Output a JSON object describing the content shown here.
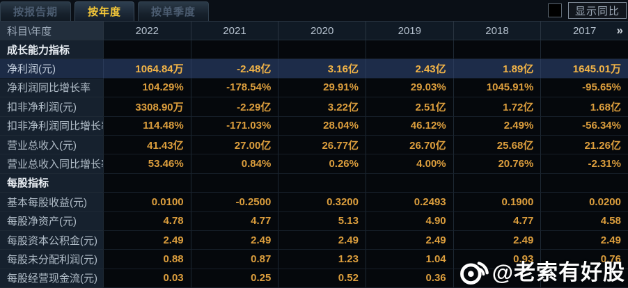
{
  "tabs": [
    {
      "label": "按报告期",
      "active": false
    },
    {
      "label": "按年度",
      "active": true
    },
    {
      "label": "按单季度",
      "active": false
    }
  ],
  "controls": {
    "show_yoy_label": "显示同比",
    "checkbox_checked": false
  },
  "table": {
    "corner_label": "科目\\年度",
    "years": [
      "2022",
      "2021",
      "2020",
      "2019",
      "2018",
      "2017"
    ],
    "more_label": "»",
    "rows": [
      {
        "type": "section",
        "label": "成长能力指标",
        "values": [
          "",
          "",
          "",
          "",
          "",
          ""
        ]
      },
      {
        "type": "highlight",
        "label": "净利润(元)",
        "values": [
          "1064.84万",
          "-2.48亿",
          "3.16亿",
          "2.43亿",
          "1.89亿",
          "1645.01万"
        ]
      },
      {
        "type": "data",
        "label": "净利润同比增长率",
        "values": [
          "104.29%",
          "-178.54%",
          "29.91%",
          "29.03%",
          "1045.91%",
          "-95.65%"
        ]
      },
      {
        "type": "data",
        "label": "扣非净利润(元)",
        "values": [
          "3308.90万",
          "-2.29亿",
          "3.22亿",
          "2.51亿",
          "1.72亿",
          "1.68亿"
        ]
      },
      {
        "type": "data",
        "label": "扣非净利润同比增长率",
        "values": [
          "114.48%",
          "-171.03%",
          "28.04%",
          "46.12%",
          "2.49%",
          "-56.34%"
        ]
      },
      {
        "type": "data",
        "label": "营业总收入(元)",
        "values": [
          "41.43亿",
          "27.00亿",
          "26.77亿",
          "26.70亿",
          "25.68亿",
          "21.26亿"
        ]
      },
      {
        "type": "data",
        "label": "营业总收入同比增长率",
        "values": [
          "53.46%",
          "0.84%",
          "0.26%",
          "4.00%",
          "20.76%",
          "-2.31%"
        ]
      },
      {
        "type": "section",
        "label": "每股指标",
        "values": [
          "",
          "",
          "",
          "",
          "",
          ""
        ]
      },
      {
        "type": "data",
        "label": "基本每股收益(元)",
        "values": [
          "0.0100",
          "-0.2500",
          "0.3200",
          "0.2493",
          "0.1900",
          "0.0200"
        ]
      },
      {
        "type": "data",
        "label": "每股净资产(元)",
        "values": [
          "4.78",
          "4.77",
          "5.13",
          "4.90",
          "4.77",
          "4.58"
        ]
      },
      {
        "type": "data",
        "label": "每股资本公积金(元)",
        "values": [
          "2.49",
          "2.49",
          "2.49",
          "2.49",
          "2.49",
          "2.49"
        ]
      },
      {
        "type": "data",
        "label": "每股未分配利润(元)",
        "values": [
          "0.88",
          "0.87",
          "1.23",
          "1.04",
          "0.93",
          "0.76"
        ]
      },
      {
        "type": "data",
        "label": "每股经营现金流(元)",
        "values": [
          "0.03",
          "0.25",
          "0.52",
          "0.36",
          "",
          ""
        ]
      }
    ]
  },
  "watermark": {
    "icon": "weibo-icon",
    "text": "@老索有好股"
  },
  "colors": {
    "accent_gold": "#f6c838",
    "value_orange": "#dc9e3d",
    "highlight_row_bg": "#1d2c49",
    "label_col_bg": "#16212e",
    "header_bg": "#222e3c",
    "page_bg": "#05080d"
  }
}
